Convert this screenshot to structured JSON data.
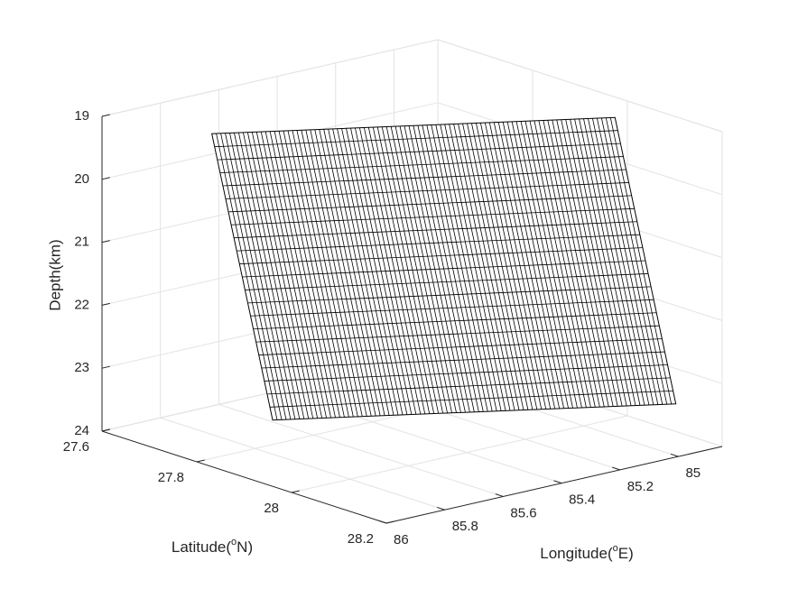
{
  "chart_data": {
    "type": "surface3d",
    "xlabel": {
      "text": "Longitude(",
      "sup": "o",
      "rest": "E)"
    },
    "ylabel": {
      "text": "Latitude(",
      "sup": "o",
      "rest": "N)"
    },
    "zlabel": "Depth(km)",
    "xlim": [
      84.85,
      86
    ],
    "xticks": [
      85,
      85.2,
      85.4,
      85.6,
      85.8,
      86
    ],
    "ylim": [
      27.6,
      28.2
    ],
    "yticks": [
      27.6,
      27.8,
      28,
      28.2
    ],
    "zlim": [
      19,
      24
    ],
    "zticks": [
      19,
      20,
      21,
      22,
      23,
      24
    ],
    "zdir": "reverse",
    "grid": true,
    "surface": {
      "color": "#ffffff",
      "edge_color": "#000000",
      "corners": [
        {
          "longitude": 85.77,
          "latitude": 27.69,
          "depth": 19.3
        },
        {
          "longitude": 84.86,
          "latitude": 27.98,
          "depth": 19.3
        },
        {
          "longitude": 84.96,
          "latitude": 28.17,
          "depth": 23.28
        },
        {
          "longitude": 85.87,
          "latitude": 27.88,
          "depth": 23.28
        }
      ],
      "strike_divisions": 90,
      "dip_divisions": 22
    }
  }
}
